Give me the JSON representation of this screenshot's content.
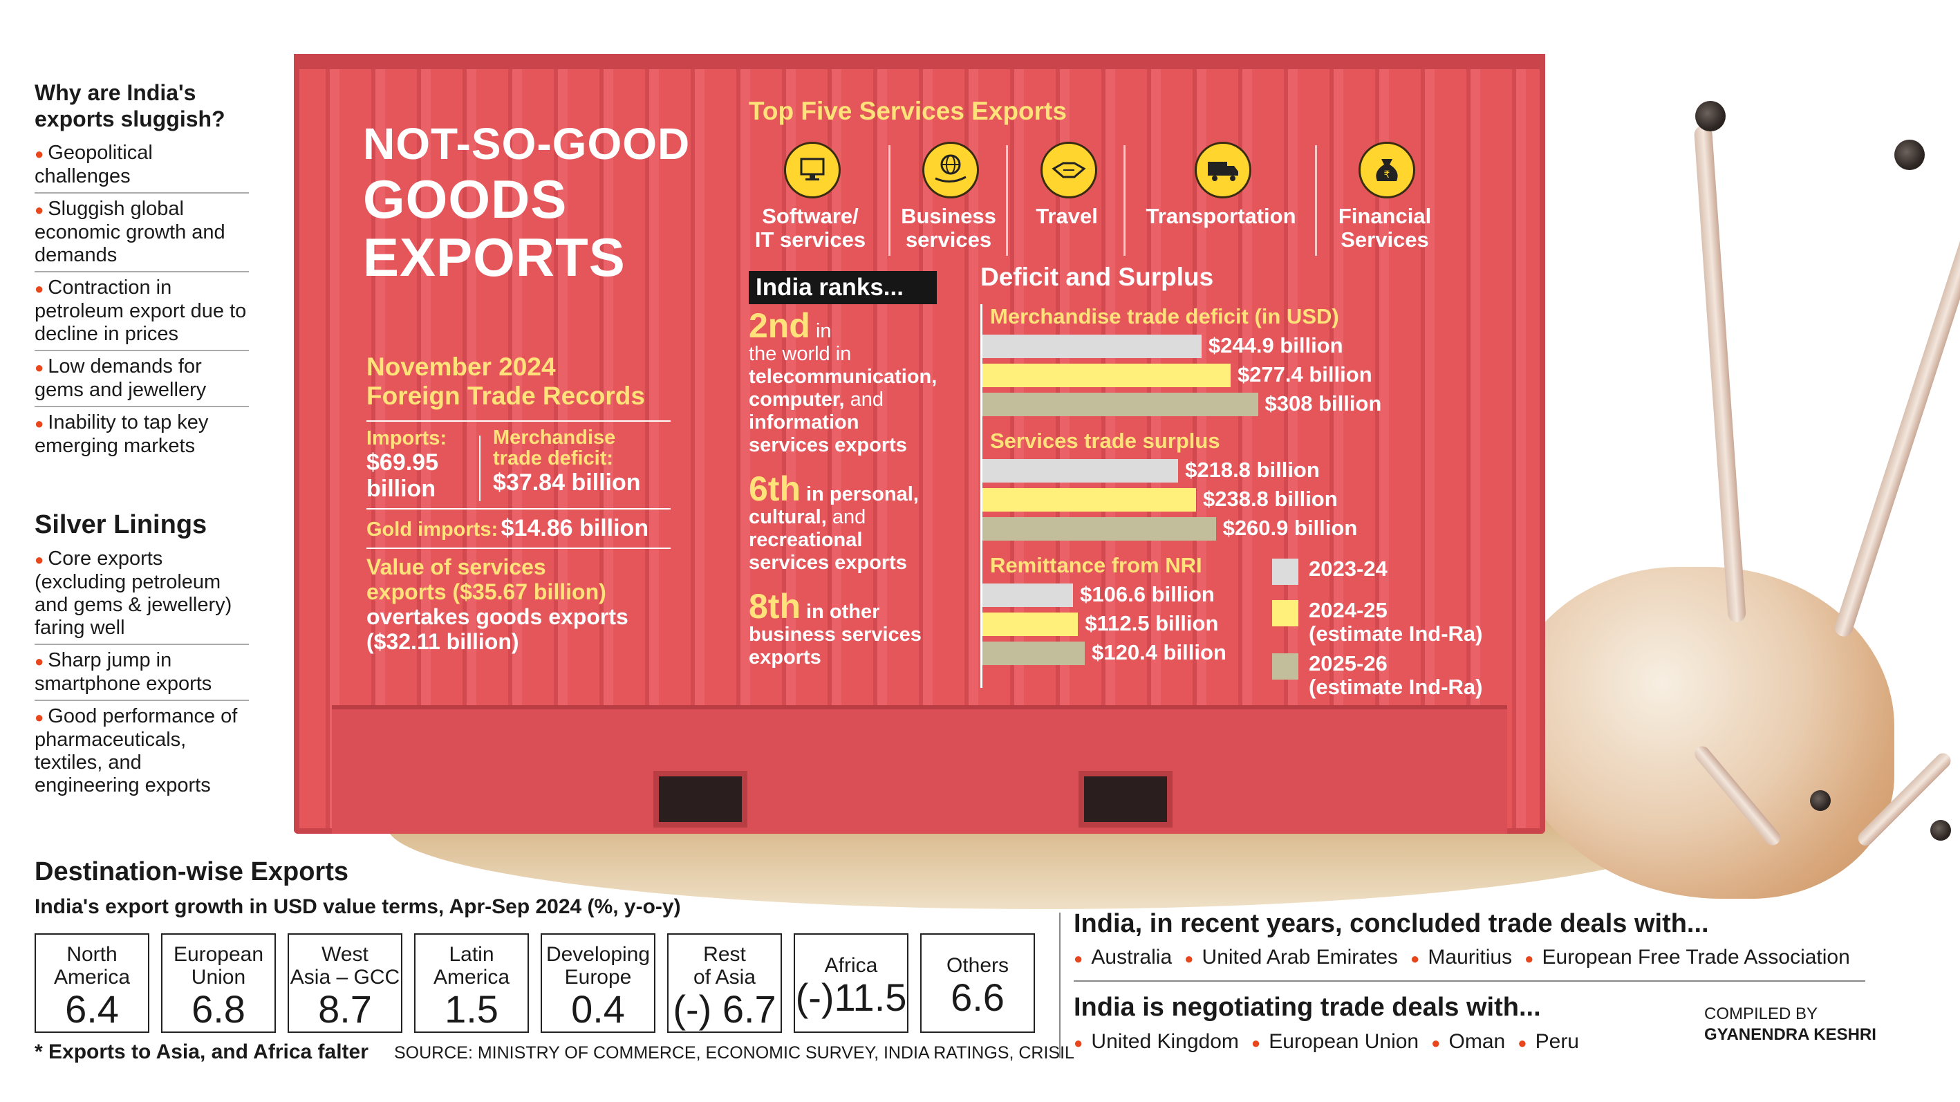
{
  "sidebar": {
    "why_title": "Why are India's exports sluggish?",
    "why_items": [
      "Geopolitical challenges",
      "Sluggish global economic growth and demands",
      "Contraction in petroleum export due to decline in prices",
      "Low demands for gems and jewellery",
      "Inability to tap key emerging markets"
    ],
    "silver_title": "Silver Linings",
    "silver_items": [
      "Core exports (excluding petroleum and gems & jewellery) faring well",
      "Sharp jump in smartphone exports",
      "Good performance of pharmaceuticals, textiles, and engineering exports"
    ]
  },
  "headline": {
    "line1": "NOT-SO-GOOD",
    "line2": "GOODS",
    "line3": "EXPORTS"
  },
  "november": {
    "title_line1": "November 2024",
    "title_line2": "Foreign Trade Records",
    "imports_label": "Imports:",
    "imports_value": "$69.95",
    "imports_unit": "billion",
    "deficit_label_1": "Merchandise",
    "deficit_label_2": "trade deficit:",
    "deficit_value": "$37.84 billion",
    "gold_label": "Gold imports:",
    "gold_value": "$14.86 billion",
    "services_line1": "Value of services",
    "services_line2": "exports ($35.67 billion)",
    "services_line3": "overtakes goods exports",
    "services_line4": "($32.11 billion)"
  },
  "top_services": {
    "title": "Top Five Services Exports",
    "items": [
      {
        "line1": "Software/",
        "line2": "IT services",
        "icon": "computer-icon"
      },
      {
        "line1": "Business",
        "line2": "services",
        "icon": "globe-hand-icon"
      },
      {
        "line1": "Travel",
        "line2": "",
        "icon": "handshake-icon"
      },
      {
        "line1": "Transportation",
        "line2": "",
        "icon": "truck-icon"
      },
      {
        "line1": "Financial",
        "line2": "Services",
        "icon": "money-bag-icon"
      }
    ]
  },
  "ranks": {
    "title": "India ranks...",
    "items": [
      {
        "rank": "2nd",
        "text1": " in",
        "text2": "the world in",
        "bold": [
          "telecommunication,",
          "computer,",
          "information",
          "services exports"
        ],
        "mid": " and"
      },
      {
        "rank": "6th",
        "text1": " in personal,",
        "bold": [
          "cultural,",
          "recreational",
          "services exports"
        ],
        "mid": " and"
      },
      {
        "rank": "8th",
        "text1": " in other",
        "bold": [
          "business services",
          "exports"
        ]
      }
    ]
  },
  "deficit_surplus": {
    "title": "Deficit and Surplus",
    "legend": [
      {
        "label": "2023-24",
        "label2": "",
        "color": "#dcdcdc"
      },
      {
        "label": "2024-25",
        "label2": "(estimate Ind-Ra)",
        "color": "#fff07c"
      },
      {
        "label": "2025-26",
        "label2": "(estimate Ind-Ra)",
        "color": "#c2bd9a"
      }
    ]
  },
  "chart_data": {
    "type": "bar",
    "orientation": "horizontal",
    "title": "Deficit and Surplus",
    "series_names": [
      "2023-24",
      "2024-25 (estimate Ind-Ra)",
      "2025-26 (estimate Ind-Ra)"
    ],
    "groups": [
      {
        "name": "Merchandise trade deficit (in USD)",
        "values": [
          244.9,
          277.4,
          308
        ],
        "labels": [
          "$244.9 billion",
          "$277.4 billion",
          "$308 billion"
        ]
      },
      {
        "name": "Services trade surplus",
        "values": [
          218.8,
          238.8,
          260.9
        ],
        "labels": [
          "$218.8 billion",
          "$238.8 billion",
          "$260.9 billion"
        ]
      },
      {
        "name": "Remittance from NRI",
        "values": [
          106.6,
          112.5,
          120.4
        ],
        "labels": [
          "$106.6 billion",
          "$112.5 billion",
          "$120.4 billion"
        ]
      }
    ],
    "unit": "billion USD",
    "colors": [
      "#dcdcdc",
      "#fff07c",
      "#c2bd9a"
    ],
    "xlim": [
      0,
      330
    ]
  },
  "destination": {
    "title": "Destination-wise Exports",
    "subtitle": "India's export growth in USD value terms, Apr-Sep 2024 (%, y-o-y)",
    "items": [
      {
        "name1": "North",
        "name2": "America",
        "value": "6.4"
      },
      {
        "name1": "European",
        "name2": "Union",
        "value": "6.8"
      },
      {
        "name1": "West",
        "name2": "Asia – GCC",
        "value": "8.7"
      },
      {
        "name1": "Latin",
        "name2": "America",
        "value": "1.5"
      },
      {
        "name1": "Developing",
        "name2": "Europe",
        "value": "0.4"
      },
      {
        "name1": "Rest",
        "name2": "of Asia",
        "value": "(-) 6.7"
      },
      {
        "name1": "Africa",
        "name2": "",
        "value": "(-)11.5"
      },
      {
        "name1": "Others",
        "name2": "",
        "value": "6.6"
      }
    ],
    "footnote": "* Exports to Asia, and Africa falter",
    "source": "SOURCE: MINISTRY OF COMMERCE, ECONOMIC SURVEY, INDIA RATINGS, CRISIL"
  },
  "trade_deals": {
    "concluded_title": "India, in recent years, concluded trade deals with...",
    "concluded": [
      "Australia",
      "United Arab Emirates",
      "Mauritius",
      "European Free Trade Association"
    ],
    "negotiating_title": "India is negotiating trade deals with...",
    "negotiating": [
      "United Kingdom",
      "European Union",
      "Oman",
      "Peru"
    ],
    "credit_line1": "COMPILED BY",
    "credit_line2": "GYANENDRA KESHRI"
  },
  "colors": {
    "container_red": "#e5565b",
    "headline_yellow": "#ffe27a",
    "bullet_orange": "#e8471e"
  }
}
